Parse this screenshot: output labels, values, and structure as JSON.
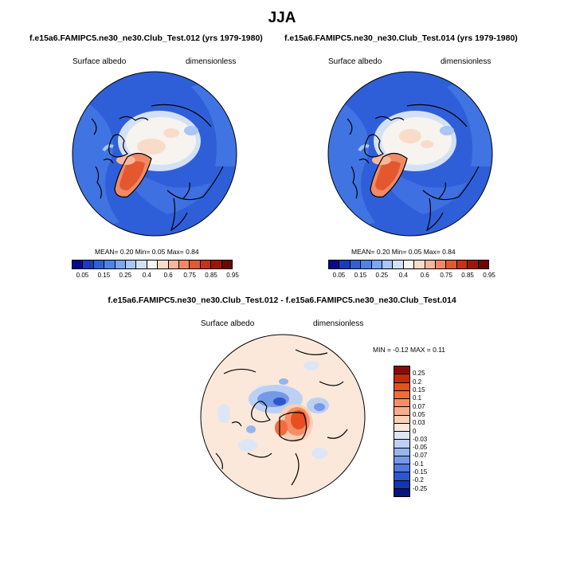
{
  "title": "JJA",
  "panels": [
    {
      "title": "f.e15a6.FAMIPC5.ne30_ne30.Club_Test.012 (yrs 1979-1980)",
      "left_label": "Surface albedo",
      "right_label": "dimensionless",
      "stats": "MEAN=   0.20  Min=   0.05  Max=    0.84"
    },
    {
      "title": "f.e15a6.FAMIPC5.ne30_ne30.Club_Test.014 (yrs 1979-1980)",
      "left_label": "Surface albedo",
      "right_label": "dimensionless",
      "stats": "MEAN=   0.20  Min=   0.05  Max=    0.84"
    }
  ],
  "difference": {
    "title": "f.e15a6.FAMIPC5.ne30_ne30.Club_Test.012 - f.e15a6.FAMIPC5.ne30_ne30.Club_Test.014",
    "left_label": "Surface albedo",
    "right_label": "dimensionless",
    "stats": "MIN =  -0.12 MAX =   0.11"
  },
  "colorbar_abs": {
    "colors": [
      "#08088f",
      "#1a3bbf",
      "#2f5fd8",
      "#4d82ea",
      "#7aa6f2",
      "#a8c6f6",
      "#d3e1f7",
      "#f7f3ef",
      "#f8dcc9",
      "#f6b79b",
      "#f08a66",
      "#e4582f",
      "#c93015",
      "#a0150a",
      "#6f0404"
    ],
    "labels": [
      "0.05",
      "0.15",
      "0.25",
      "0.4",
      "0.6",
      "0.75",
      "0.85",
      "0.95"
    ]
  },
  "colorbar_diff": {
    "colors": [
      "#8a0a0a",
      "#c7270c",
      "#e94e1e",
      "#f26b3c",
      "#f58d66",
      "#f7ac8d",
      "#f9cfb5",
      "#fbe8da",
      "#dce6f7",
      "#bcd0f3",
      "#97b5ee",
      "#7598e8",
      "#5079de",
      "#2d56cd",
      "#1535b2",
      "#08147d"
    ],
    "labels": [
      "0.25",
      "0.2",
      "0.15",
      "0.1",
      "0.07",
      "0.05",
      "0.03",
      "0",
      "-0.03",
      "-0.05",
      "-0.07",
      "-0.1",
      "-0.15",
      "-0.2",
      "-0.25"
    ]
  }
}
